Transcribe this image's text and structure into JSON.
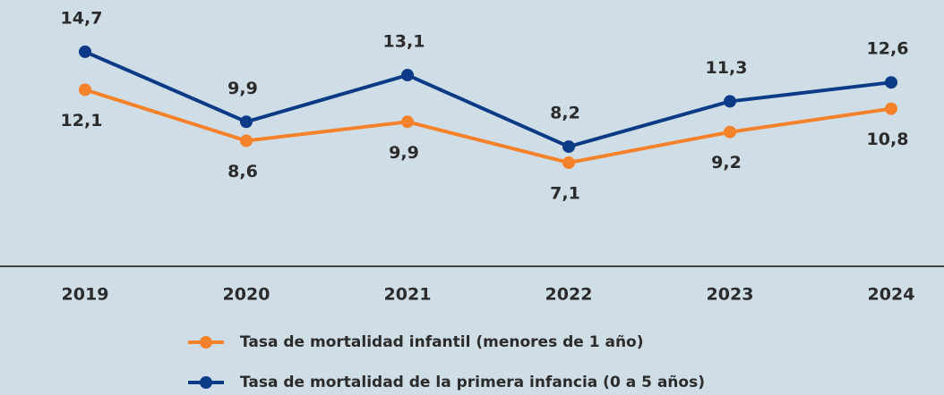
{
  "chart_data": {
    "type": "line",
    "categories": [
      "2019",
      "2020",
      "2021",
      "2022",
      "2023",
      "2024"
    ],
    "series": [
      {
        "name": "Tasa de mortalidad infantil (menores de 1 año)",
        "color": "#f5822a",
        "values": [
          12.1,
          8.6,
          9.9,
          7.1,
          9.2,
          10.8
        ],
        "value_labels": [
          "12,1",
          "8,6",
          "9,9",
          "7,1",
          "9,2",
          "10,8"
        ]
      },
      {
        "name": "Tasa de mortalidad de la primera infancia (0 a 5 años)",
        "color": "#0b3b87",
        "values": [
          14.7,
          9.9,
          13.1,
          8.2,
          11.3,
          12.6
        ],
        "value_labels": [
          "14,7",
          "9,9",
          "13,1",
          "8,2",
          "11,3",
          "12,6"
        ]
      }
    ],
    "ylim": [
      0,
      18
    ]
  }
}
